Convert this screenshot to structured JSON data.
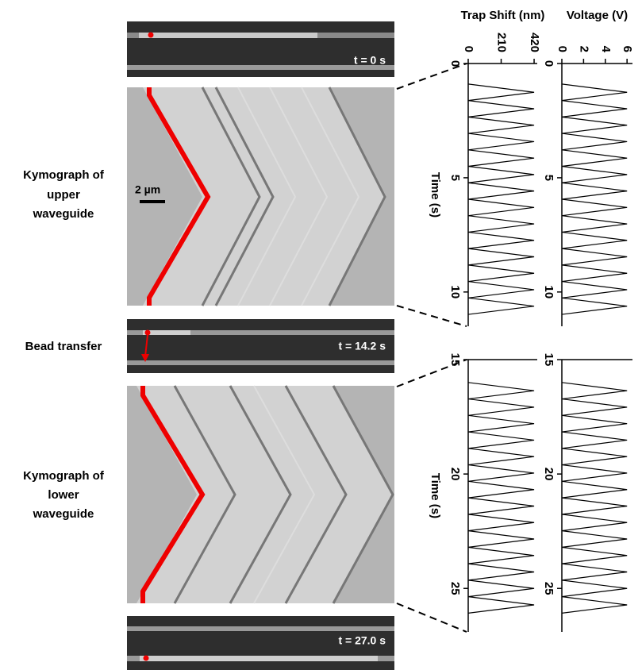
{
  "labels": {
    "upper_kymo": [
      "Kymograph of",
      "upper",
      "waveguide"
    ],
    "bead_transfer": "Bead transfer",
    "lower_kymo": [
      "Kymograph of",
      "lower",
      "waveguide"
    ],
    "scale_bar": "2 µm",
    "t_top": "t = 0 s",
    "t_mid": "t = 14.2 s",
    "t_bottom": "t = 27.0 s"
  },
  "chart_data": [
    {
      "type": "line",
      "title": "Trap Shift (nm)",
      "xlabel": "Time (s)",
      "rotated": true,
      "color": "#000000",
      "x": [
        0.9,
        1.26,
        1.62,
        1.98,
        2.34,
        2.7,
        3.06,
        3.42,
        3.78,
        4.14,
        4.5,
        4.86,
        5.22,
        5.58,
        5.94,
        6.3,
        6.66,
        7.02,
        7.38,
        7.74,
        8.1,
        8.46,
        8.82,
        9.18,
        9.54,
        9.9,
        10.26,
        10.62,
        10.98
      ],
      "values": [
        0,
        420,
        0,
        420,
        0,
        420,
        0,
        420,
        0,
        420,
        0,
        420,
        0,
        420,
        0,
        420,
        0,
        420,
        0,
        420,
        0,
        420,
        0,
        420,
        0,
        420,
        0,
        420,
        0
      ],
      "xlim": [
        0,
        11.5
      ],
      "xticks": [
        0,
        5,
        10
      ],
      "ylim": [
        0,
        440
      ],
      "yticks": [
        0,
        210,
        420
      ]
    },
    {
      "type": "line",
      "title": "Voltage (V)",
      "rotated": true,
      "color": "#000000",
      "x": [
        0.9,
        1.26,
        1.62,
        1.98,
        2.34,
        2.7,
        3.06,
        3.42,
        3.78,
        4.14,
        4.5,
        4.86,
        5.22,
        5.58,
        5.94,
        6.3,
        6.66,
        7.02,
        7.38,
        7.74,
        8.1,
        8.46,
        8.82,
        9.18,
        9.54,
        9.9,
        10.26,
        10.62,
        10.98
      ],
      "values": [
        0,
        6,
        0,
        6,
        0,
        6,
        0,
        6,
        0,
        6,
        0,
        6,
        0,
        6,
        0,
        6,
        0,
        6,
        0,
        6,
        0,
        6,
        0,
        6,
        0,
        6,
        0,
        6,
        0
      ],
      "xlim": [
        0,
        11.5
      ],
      "xticks": [
        0,
        5,
        10
      ],
      "ylim": [
        0,
        6.5
      ],
      "yticks": [
        0,
        2,
        4,
        6
      ]
    },
    {
      "type": "line",
      "xlabel": "Time (s)",
      "rotated": true,
      "color": "#000000",
      "x": [
        16.0,
        16.36,
        16.72,
        17.08,
        17.44,
        17.8,
        18.16,
        18.52,
        18.88,
        19.24,
        19.6,
        19.96,
        20.32,
        20.68,
        21.04,
        21.4,
        21.76,
        22.12,
        22.48,
        22.84,
        23.2,
        23.56,
        23.92,
        24.28,
        24.64,
        25.0,
        25.36,
        25.72,
        26.08
      ],
      "values": [
        0,
        420,
        0,
        420,
        0,
        420,
        0,
        420,
        0,
        420,
        0,
        420,
        0,
        420,
        0,
        420,
        0,
        420,
        0,
        420,
        0,
        420,
        0,
        420,
        0,
        420,
        0,
        420,
        0
      ],
      "xlim": [
        15,
        26.9
      ],
      "xticks": [
        15,
        20,
        25
      ],
      "ylim": [
        0,
        440
      ]
    },
    {
      "type": "line",
      "rotated": true,
      "color": "#000000",
      "x": [
        16.0,
        16.36,
        16.72,
        17.08,
        17.44,
        17.8,
        18.16,
        18.52,
        18.88,
        19.24,
        19.6,
        19.96,
        20.32,
        20.68,
        21.04,
        21.4,
        21.76,
        22.12,
        22.48,
        22.84,
        23.2,
        23.56,
        23.92,
        24.28,
        24.64,
        25.0,
        25.36,
        25.72,
        26.08
      ],
      "values": [
        0,
        6,
        0,
        6,
        0,
        6,
        0,
        6,
        0,
        6,
        0,
        6,
        0,
        6,
        0,
        6,
        0,
        6,
        0,
        6,
        0,
        6,
        0,
        6,
        0,
        6,
        0,
        6,
        0
      ],
      "xlim": [
        15,
        26.9
      ],
      "xticks": [
        15,
        20,
        25
      ],
      "ylim": [
        0,
        6.5
      ]
    }
  ]
}
